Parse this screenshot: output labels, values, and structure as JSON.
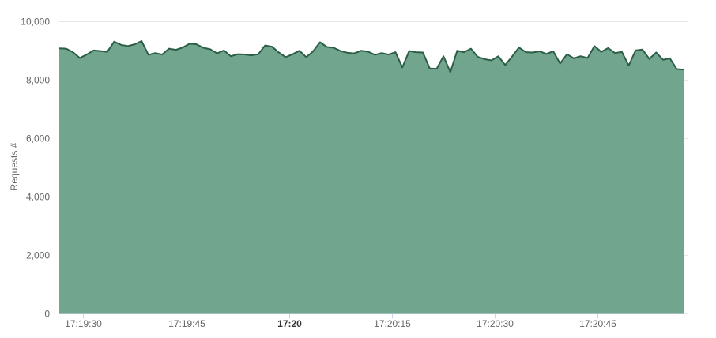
{
  "chart_data": {
    "type": "area",
    "title": "",
    "xlabel": "",
    "ylabel": "Requests #",
    "ylim": [
      0,
      10000
    ],
    "y_ticks": [
      {
        "value": 0,
        "label": "0"
      },
      {
        "value": 2000,
        "label": "2,000"
      },
      {
        "value": 4000,
        "label": "4,000"
      },
      {
        "value": 6000,
        "label": "6,000"
      },
      {
        "value": 8000,
        "label": "8,000"
      },
      {
        "value": 10000,
        "label": "10,000"
      }
    ],
    "x_ticks": [
      {
        "value": "17:19:30",
        "label": "17:19:30",
        "bold": false
      },
      {
        "value": "17:19:45",
        "label": "17:19:45",
        "bold": false
      },
      {
        "value": "17:20:00",
        "label": "17:20",
        "bold": true
      },
      {
        "value": "17:20:15",
        "label": "17:20:15",
        "bold": false
      },
      {
        "value": "17:20:30",
        "label": "17:20:30",
        "bold": false
      },
      {
        "value": "17:20:45",
        "label": "17:20:45",
        "bold": false
      }
    ],
    "grid": true,
    "fill_color": "#72a58d",
    "line_color": "#2c5e47",
    "series": [
      {
        "x": [
          "17:19:26.5",
          "17:19:27.5",
          "17:19:28.5",
          "17:19:29.5",
          "17:19:30.5",
          "17:19:31.5",
          "17:19:32.5",
          "17:19:33.5",
          "17:19:34.5",
          "17:19:35.5",
          "17:19:36.5",
          "17:19:37.5",
          "17:19:38.5",
          "17:19:39.5",
          "17:19:40.5",
          "17:19:41.5",
          "17:19:42.5",
          "17:19:43.5",
          "17:19:44.5",
          "17:19:45.5",
          "17:19:46.5",
          "17:19:47.5",
          "17:19:48.5",
          "17:19:49.5",
          "17:19:50.5",
          "17:19:51.5",
          "17:19:52.5",
          "17:19:53.5",
          "17:19:54.5",
          "17:19:55.5",
          "17:19:56.5",
          "17:19:57.5",
          "17:19:58.5",
          "17:19:59.5",
          "17:20:00.5",
          "17:20:01.5",
          "17:20:02.5",
          "17:20:03.5",
          "17:20:04.5",
          "17:20:05.5",
          "17:20:06.5",
          "17:20:07.5",
          "17:20:08.5",
          "17:20:09.5",
          "17:20:10.5",
          "17:20:11.5",
          "17:20:12.5",
          "17:20:13.5",
          "17:20:14.5",
          "17:20:15.5",
          "17:20:16.5",
          "17:20:17.5",
          "17:20:18.5",
          "17:20:19.5",
          "17:20:20.5",
          "17:20:21.5",
          "17:20:22.5",
          "17:20:23.5",
          "17:20:24.5",
          "17:20:25.5",
          "17:20:26.5",
          "17:20:27.5",
          "17:20:28.5",
          "17:20:29.5",
          "17:20:30.5",
          "17:20:31.5",
          "17:20:32.5",
          "17:20:33.5",
          "17:20:34.5",
          "17:20:35.5",
          "17:20:36.5",
          "17:20:37.5",
          "17:20:38.5",
          "17:20:39.5",
          "17:20:40.5",
          "17:20:41.5",
          "17:20:42.5",
          "17:20:43.5",
          "17:20:44.5",
          "17:20:45.5",
          "17:20:46.5",
          "17:20:47.5",
          "17:20:48.5",
          "17:20:49.5",
          "17:20:50.5",
          "17:20:51.5",
          "17:20:52.5",
          "17:20:53.5",
          "17:20:54.5",
          "17:20:55.5",
          "17:20:56.5",
          "17:20:57.5"
        ],
        "values": [
          9060,
          9050,
          8930,
          8730,
          8850,
          8990,
          8970,
          8940,
          9290,
          9180,
          9140,
          9200,
          9310,
          8840,
          8900,
          8850,
          9050,
          9010,
          9090,
          9220,
          9200,
          9080,
          9030,
          8890,
          8990,
          8790,
          8860,
          8850,
          8820,
          8860,
          9160,
          9120,
          8920,
          8760,
          8860,
          8980,
          8760,
          8960,
          9270,
          9110,
          9080,
          8970,
          8910,
          8890,
          8980,
          8950,
          8840,
          8900,
          8850,
          8930,
          8410,
          8970,
          8930,
          8920,
          8370,
          8360,
          8790,
          8250,
          8980,
          8930,
          9050,
          8770,
          8690,
          8650,
          8790,
          8490,
          8780,
          9090,
          8930,
          8920,
          8960,
          8870,
          8960,
          8540,
          8860,
          8720,
          8790,
          8730,
          9140,
          8940,
          9070,
          8900,
          8940,
          8470,
          8990,
          9020,
          8700,
          8920,
          8670,
          8720,
          8350,
          8330
        ]
      }
    ]
  }
}
